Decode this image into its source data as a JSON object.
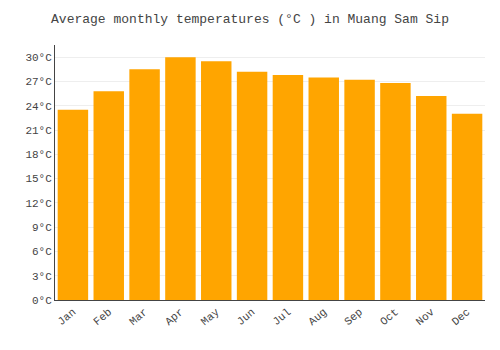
{
  "chart_data": {
    "type": "bar",
    "title": "Average monthly temperatures (°C ) in Muang Sam Sip",
    "categories": [
      "Jan",
      "Feb",
      "Mar",
      "Apr",
      "May",
      "Jun",
      "Jul",
      "Aug",
      "Sep",
      "Oct",
      "Nov",
      "Dec"
    ],
    "values": [
      23.5,
      25.8,
      28.5,
      30.0,
      29.5,
      28.2,
      27.8,
      27.5,
      27.2,
      26.8,
      25.2,
      23.0
    ],
    "color": "#FFA500",
    "ylim": [
      0,
      31.5
    ],
    "yticks": [
      {
        "value": 0,
        "label": "0°C"
      },
      {
        "value": 3,
        "label": "3°C"
      },
      {
        "value": 6,
        "label": "6°C"
      },
      {
        "value": 9,
        "label": "9°C"
      },
      {
        "value": 12,
        "label": "12°C"
      },
      {
        "value": 15,
        "label": "15°C"
      },
      {
        "value": 18,
        "label": "18°C"
      },
      {
        "value": 21,
        "label": "21°C"
      },
      {
        "value": 24,
        "label": "24°C"
      },
      {
        "value": 27,
        "label": "27°C"
      },
      {
        "value": 30,
        "label": "30°C"
      }
    ],
    "grid": true
  }
}
